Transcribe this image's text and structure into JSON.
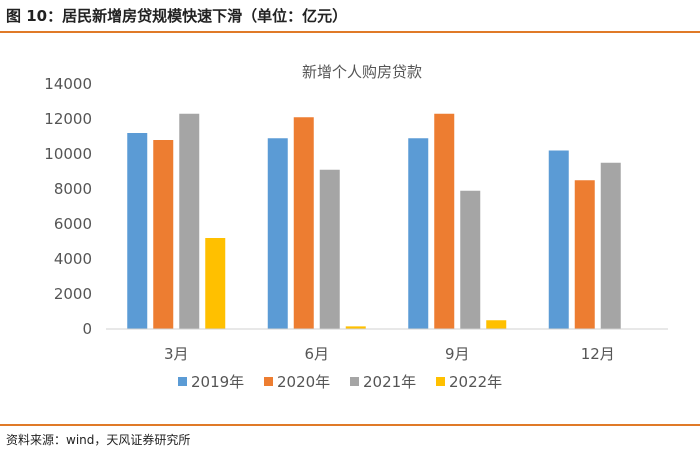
{
  "figure": {
    "title": "图 10：居民新增房贷规模快速下滑（单位：亿元）",
    "source": "资料来源：wind，天风证券研究所"
  },
  "colors": {
    "accent_rule": "#e07a28",
    "series": [
      "#5b9bd5",
      "#ed7d31",
      "#a5a5a5",
      "#ffc000"
    ]
  },
  "chart_data": {
    "type": "bar",
    "title": "新增个人购房贷款",
    "xlabel": "",
    "ylabel": "",
    "categories": [
      "3月",
      "6月",
      "9月",
      "12月"
    ],
    "series": [
      {
        "name": "2019年",
        "values": [
          11200,
          10900,
          10900,
          10200
        ]
      },
      {
        "name": "2020年",
        "values": [
          10800,
          12100,
          12300,
          8500
        ]
      },
      {
        "name": "2021年",
        "values": [
          12300,
          9100,
          7900,
          9500
        ]
      },
      {
        "name": "2022年",
        "values": [
          5200,
          150,
          500,
          null
        ]
      }
    ],
    "ylim": [
      0,
      14000
    ],
    "yticks": [
      0,
      2000,
      4000,
      6000,
      8000,
      10000,
      12000,
      14000
    ],
    "grid": false,
    "legend_position": "bottom"
  }
}
